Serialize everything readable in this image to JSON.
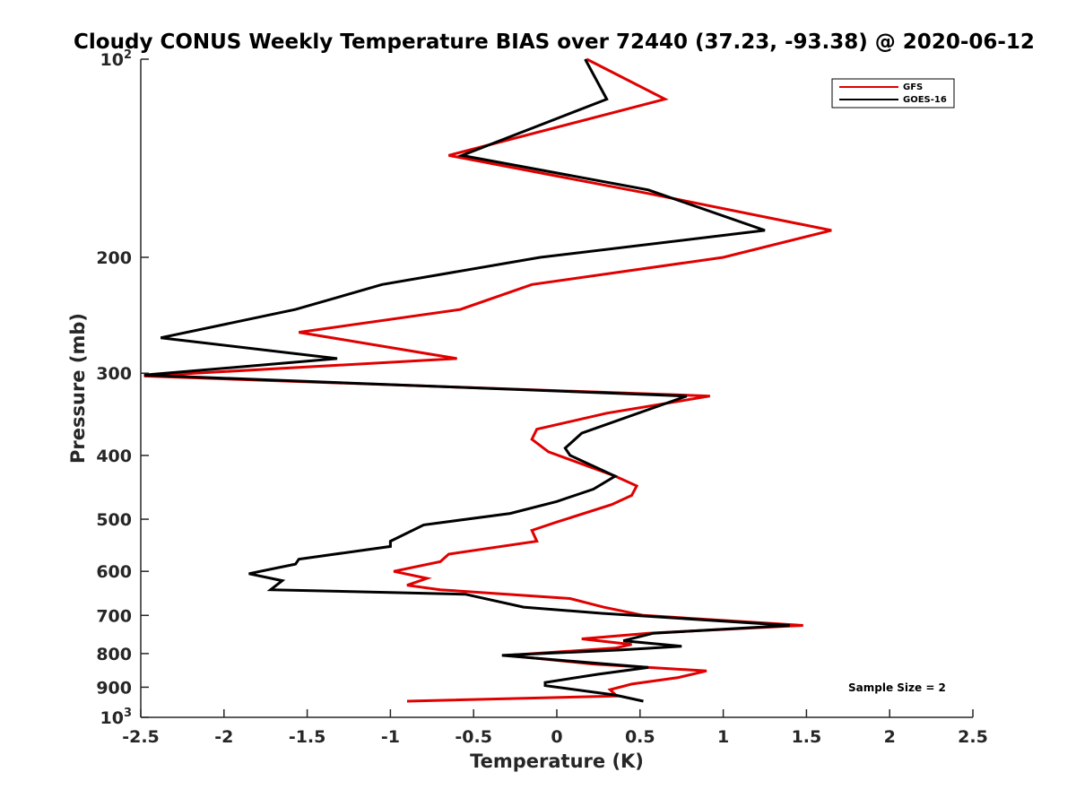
{
  "chart_data": {
    "type": "line",
    "title": "Cloudy CONUS Weekly Temperature BIAS over 72440 (37.23, -93.38) @ 2020-06-12",
    "xlabel": "Temperature (K)",
    "ylabel": "Pressure (mb)",
    "xlim": [
      -2.5,
      2.5
    ],
    "ylim": [
      100,
      1000
    ],
    "y_scale": "log",
    "y_reversed": true,
    "x_ticks": [
      "-2.5",
      "-2",
      "-1.5",
      "-1",
      "-0.5",
      "0",
      "0.5",
      "1",
      "1.5",
      "2",
      "2.5"
    ],
    "y_ticks": [
      {
        "value": 100,
        "base": "10",
        "exp": "2"
      },
      {
        "value": 200,
        "label": "200"
      },
      {
        "value": 300,
        "label": "300"
      },
      {
        "value": 400,
        "label": "400"
      },
      {
        "value": 500,
        "label": "500"
      },
      {
        "value": 600,
        "label": "600"
      },
      {
        "value": 700,
        "label": "700"
      },
      {
        "value": 800,
        "label": "800"
      },
      {
        "value": 900,
        "label": "900"
      },
      {
        "value": 1000,
        "base": "10",
        "exp": "3"
      }
    ],
    "grid": false,
    "legend_position": "top-right",
    "annotation": "Sample Size = 2",
    "series": [
      {
        "name": "GFS",
        "color": "#e00000",
        "points": [
          [
            0.18,
            100
          ],
          [
            0.65,
            115
          ],
          [
            -0.65,
            140
          ],
          [
            0.55,
            160
          ],
          [
            1.65,
            182
          ],
          [
            1.0,
            200
          ],
          [
            -0.15,
            220
          ],
          [
            -0.58,
            240
          ],
          [
            -1.55,
            260
          ],
          [
            -0.6,
            285
          ],
          [
            -2.48,
            303
          ],
          [
            0.92,
            325
          ],
          [
            0.3,
            345
          ],
          [
            -0.12,
            365
          ],
          [
            -0.15,
            378
          ],
          [
            -0.05,
            395
          ],
          [
            0.35,
            430
          ],
          [
            0.48,
            445
          ],
          [
            0.45,
            460
          ],
          [
            0.33,
            475
          ],
          [
            0.0,
            505
          ],
          [
            -0.15,
            520
          ],
          [
            -0.12,
            540
          ],
          [
            -0.65,
            565
          ],
          [
            -0.7,
            580
          ],
          [
            -0.98,
            600
          ],
          [
            -0.78,
            615
          ],
          [
            -0.9,
            630
          ],
          [
            -0.7,
            640
          ],
          [
            0.08,
            660
          ],
          [
            0.28,
            680
          ],
          [
            0.52,
            700
          ],
          [
            1.48,
            725
          ],
          [
            0.55,
            745
          ],
          [
            0.15,
            760
          ],
          [
            0.45,
            775
          ],
          [
            0.35,
            785
          ],
          [
            -0.3,
            805
          ],
          [
            0.22,
            830
          ],
          [
            0.9,
            850
          ],
          [
            0.73,
            870
          ],
          [
            0.45,
            890
          ],
          [
            0.32,
            908
          ],
          [
            0.36,
            928
          ],
          [
            -0.9,
            945
          ]
        ]
      },
      {
        "name": "GOES-16",
        "color": "#000000",
        "points": [
          [
            0.17,
            100
          ],
          [
            0.3,
            115
          ],
          [
            -0.57,
            140
          ],
          [
            0.55,
            158
          ],
          [
            1.25,
            182
          ],
          [
            -0.1,
            200
          ],
          [
            -1.05,
            220
          ],
          [
            -1.57,
            240
          ],
          [
            -2.38,
            265
          ],
          [
            -1.32,
            285
          ],
          [
            -2.48,
            302
          ],
          [
            0.78,
            325
          ],
          [
            0.15,
            370
          ],
          [
            0.05,
            390
          ],
          [
            0.08,
            400
          ],
          [
            0.35,
            430
          ],
          [
            0.22,
            450
          ],
          [
            0.0,
            470
          ],
          [
            -0.28,
            490
          ],
          [
            -0.8,
            510
          ],
          [
            -1.0,
            540
          ],
          [
            -1.0,
            550
          ],
          [
            -1.55,
            575
          ],
          [
            -1.57,
            585
          ],
          [
            -1.85,
            605
          ],
          [
            -1.65,
            620
          ],
          [
            -1.72,
            640
          ],
          [
            -0.55,
            650
          ],
          [
            -0.2,
            680
          ],
          [
            0.27,
            695
          ],
          [
            1.4,
            725
          ],
          [
            0.58,
            745
          ],
          [
            0.4,
            765
          ],
          [
            0.75,
            780
          ],
          [
            0.38,
            790
          ],
          [
            -0.33,
            805
          ],
          [
            0.55,
            840
          ],
          [
            0.25,
            860
          ],
          [
            -0.07,
            885
          ],
          [
            -0.07,
            895
          ],
          [
            0.35,
            925
          ],
          [
            0.52,
            945
          ]
        ]
      }
    ]
  }
}
